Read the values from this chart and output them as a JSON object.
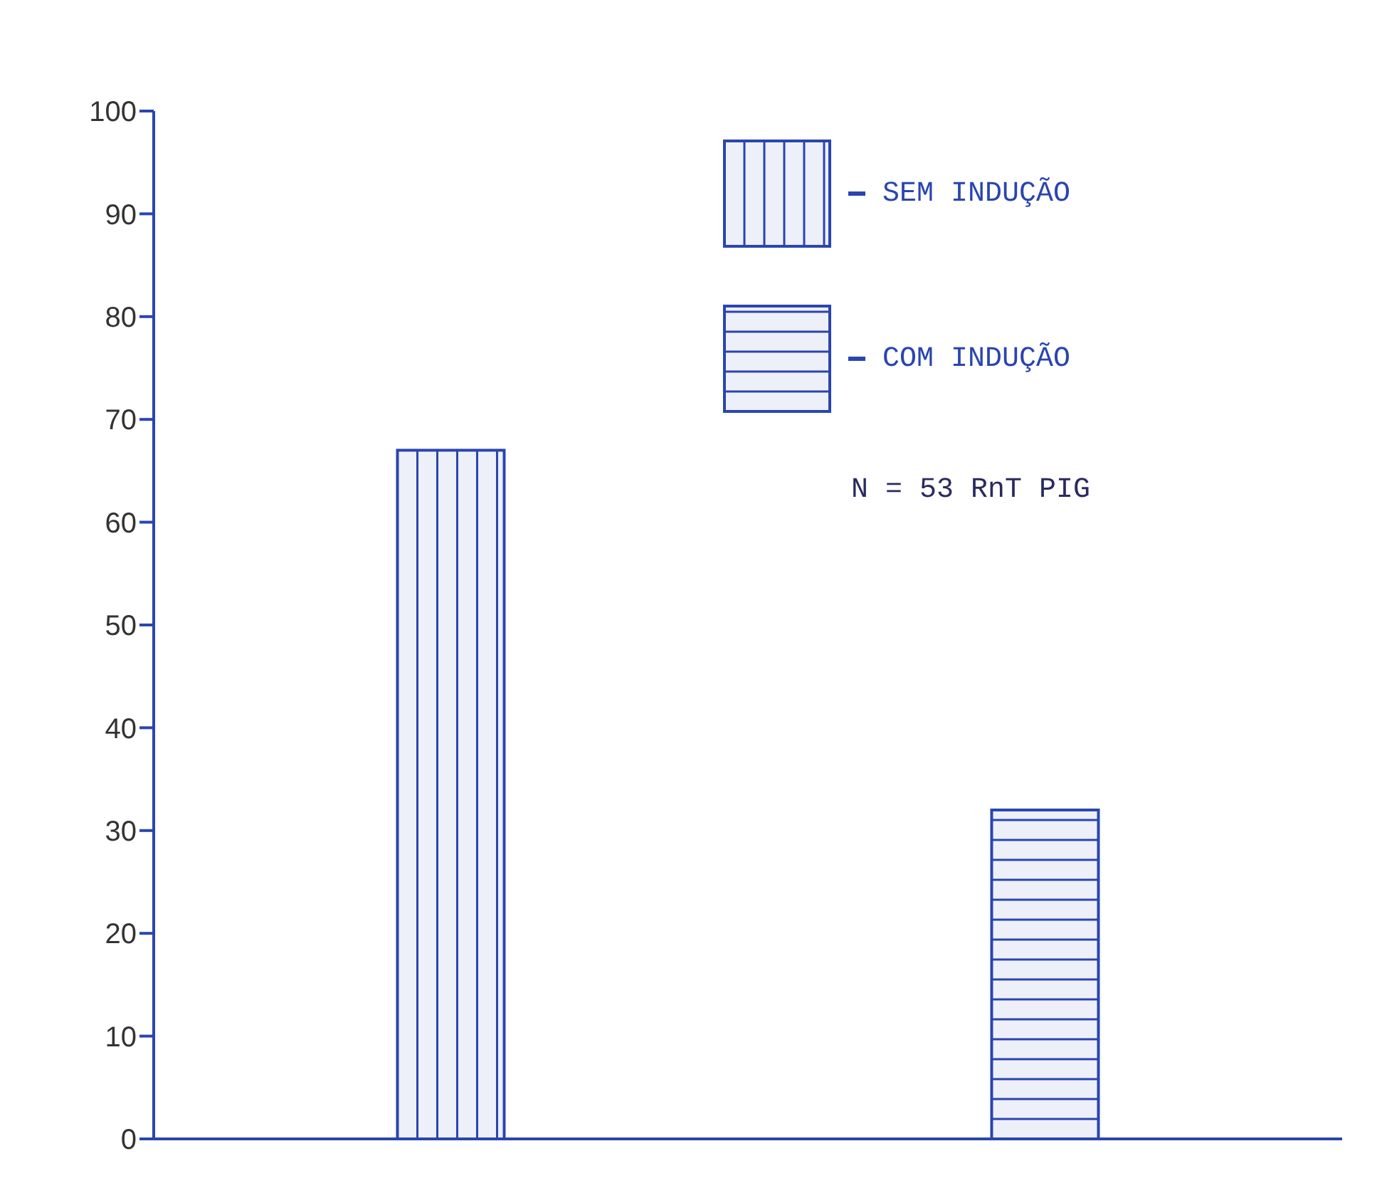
{
  "chart_data": {
    "type": "bar",
    "categories": [
      null,
      null
    ],
    "stacked": true,
    "series": [
      {
        "name": "SEM INDUÇÃO",
        "color": "#2a45b0",
        "values": [
          67,
          null
        ]
      },
      {
        "name": "COM INDUÇÃO",
        "color": "#2a45b0",
        "values": [
          null,
          32
        ]
      }
    ],
    "ylim": [
      0,
      100
    ],
    "yticks": [
      0,
      10,
      20,
      30,
      40,
      50,
      60,
      70,
      80,
      90,
      100
    ],
    "grid": false,
    "legend": "top right",
    "tick_labels": "y",
    "annotations": [
      "N = 53 RnT PIG"
    ]
  }
}
